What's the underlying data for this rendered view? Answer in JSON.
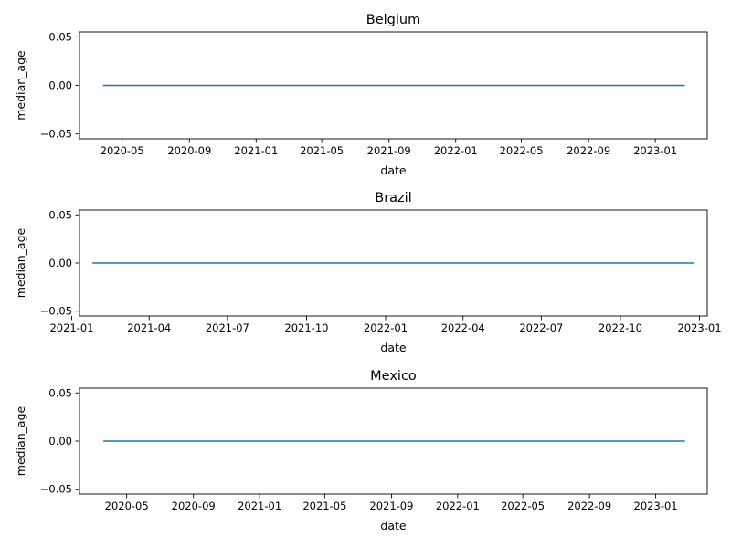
{
  "chart_data": [
    {
      "type": "line",
      "title": "Belgium",
      "xlabel": "date",
      "ylabel": "median_age",
      "x_range": [
        "2020-02-13",
        "2023-04-06"
      ],
      "ylim": [
        -0.055,
        0.055
      ],
      "x_ticks": [
        {
          "date": "2020-05-01",
          "label": "2020-05"
        },
        {
          "date": "2020-09-01",
          "label": "2020-09"
        },
        {
          "date": "2021-01-01",
          "label": "2021-01"
        },
        {
          "date": "2021-05-01",
          "label": "2021-05"
        },
        {
          "date": "2021-09-01",
          "label": "2021-09"
        },
        {
          "date": "2022-01-01",
          "label": "2022-01"
        },
        {
          "date": "2022-05-01",
          "label": "2022-05"
        },
        {
          "date": "2022-09-01",
          "label": "2022-09"
        },
        {
          "date": "2023-01-01",
          "label": "2023-01"
        }
      ],
      "y_ticks": [
        {
          "value": 0.05,
          "label": "0.05"
        },
        {
          "value": 0.0,
          "label": "0.00"
        },
        {
          "value": -0.05,
          "label": "−0.05"
        }
      ],
      "series": [
        {
          "color": "#1f77b4",
          "x": [
            "2020-03-27",
            "2023-02-24"
          ],
          "y": [
            0,
            0
          ]
        }
      ],
      "grid": false,
      "legend": "none"
    },
    {
      "type": "line",
      "title": "Brazil",
      "xlabel": "date",
      "ylabel": "median_age",
      "x_range": [
        "2021-01-10",
        "2023-01-10"
      ],
      "ylim": [
        -0.055,
        0.055
      ],
      "x_ticks": [
        {
          "date": "2021-01-01",
          "label": "2021-01"
        },
        {
          "date": "2021-04-01",
          "label": "2021-04"
        },
        {
          "date": "2021-07-01",
          "label": "2021-07"
        },
        {
          "date": "2021-10-01",
          "label": "2021-10"
        },
        {
          "date": "2022-01-01",
          "label": "2022-01"
        },
        {
          "date": "2022-04-01",
          "label": "2022-04"
        },
        {
          "date": "2022-07-01",
          "label": "2022-07"
        },
        {
          "date": "2022-10-01",
          "label": "2022-10"
        },
        {
          "date": "2023-01-01",
          "label": "2023-01"
        }
      ],
      "y_ticks": [
        {
          "value": 0.05,
          "label": "0.05"
        },
        {
          "value": 0.0,
          "label": "0.00"
        },
        {
          "value": -0.05,
          "label": "−0.05"
        }
      ],
      "series": [
        {
          "color": "#1f77b4",
          "x": [
            "2021-01-25",
            "2022-12-26"
          ],
          "y": [
            0,
            0
          ]
        }
      ],
      "grid": false,
      "legend": "none"
    },
    {
      "type": "line",
      "title": "Mexico",
      "xlabel": "date",
      "ylabel": "median_age",
      "x_range": [
        "2020-02-04",
        "2023-04-06"
      ],
      "ylim": [
        -0.055,
        0.055
      ],
      "x_ticks": [
        {
          "date": "2020-05-01",
          "label": "2020-05"
        },
        {
          "date": "2020-09-01",
          "label": "2020-09"
        },
        {
          "date": "2021-01-01",
          "label": "2021-01"
        },
        {
          "date": "2021-05-01",
          "label": "2021-05"
        },
        {
          "date": "2021-09-01",
          "label": "2021-09"
        },
        {
          "date": "2022-01-01",
          "label": "2022-01"
        },
        {
          "date": "2022-05-01",
          "label": "2022-05"
        },
        {
          "date": "2022-09-01",
          "label": "2022-09"
        },
        {
          "date": "2023-01-01",
          "label": "2023-01"
        }
      ],
      "y_ticks": [
        {
          "value": 0.05,
          "label": "0.05"
        },
        {
          "value": 0.0,
          "label": "0.00"
        },
        {
          "value": -0.05,
          "label": "−0.05"
        }
      ],
      "series": [
        {
          "color": "#1f77b4",
          "x": [
            "2020-03-19",
            "2023-02-24"
          ],
          "y": [
            0,
            0
          ]
        }
      ],
      "grid": false,
      "legend": "none"
    }
  ]
}
